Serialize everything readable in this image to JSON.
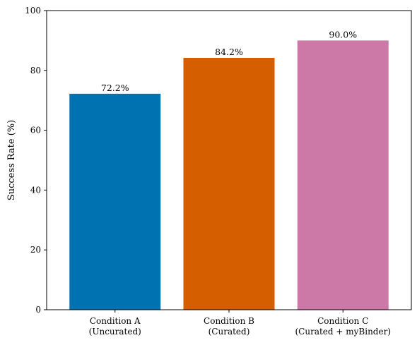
{
  "chart_data": {
    "type": "bar",
    "categories": [
      [
        "Condition A",
        "(Uncurated)"
      ],
      [
        "Condition B",
        "(Curated)"
      ],
      [
        "Condition C",
        "(Curated + myBinder)"
      ]
    ],
    "values": [
      72.2,
      84.2,
      90.0
    ],
    "data_labels": [
      "72.2%",
      "84.2%",
      "90.0%"
    ],
    "colors": [
      "#0072b2",
      "#d55e00",
      "#cc79a7"
    ],
    "title": "",
    "xlabel": "",
    "ylabel": "Success Rate (%)",
    "ylim": [
      0,
      100
    ],
    "yticks": [
      0,
      20,
      40,
      60,
      80,
      100
    ],
    "grid": false,
    "legend": "none"
  }
}
